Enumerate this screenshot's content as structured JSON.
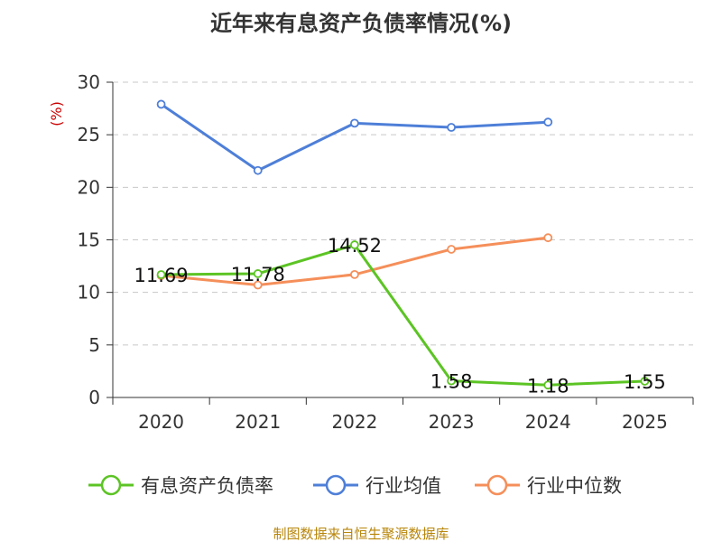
{
  "chart_data": {
    "type": "line",
    "title": "近年来有息资产负债率情况(%)",
    "y_unit": "(%)",
    "categories": [
      "2020",
      "2021",
      "2022",
      "2023",
      "2024",
      "2025"
    ],
    "y_ticks": [
      "0",
      "5",
      "10",
      "15",
      "20",
      "25",
      "30"
    ],
    "ylim": [
      0,
      30
    ],
    "grid": true,
    "legend_position": "bottom",
    "series": [
      {
        "name": "有息资产负债率",
        "color": "#5cc424",
        "values": [
          11.69,
          11.78,
          14.52,
          1.58,
          1.18,
          1.55
        ],
        "labels": [
          "11.69",
          "11.78",
          "14.52",
          "1.58",
          "1.18",
          "1.55"
        ]
      },
      {
        "name": "行业均值",
        "color": "#4e7fd8",
        "values": [
          27.9,
          21.6,
          26.1,
          25.7,
          26.2,
          null
        ]
      },
      {
        "name": "行业中位数",
        "color": "#f58f5a",
        "values": [
          11.6,
          10.7,
          11.7,
          14.1,
          15.2,
          null
        ]
      }
    ],
    "source": "制图数据来自恒生聚源数据库"
  }
}
